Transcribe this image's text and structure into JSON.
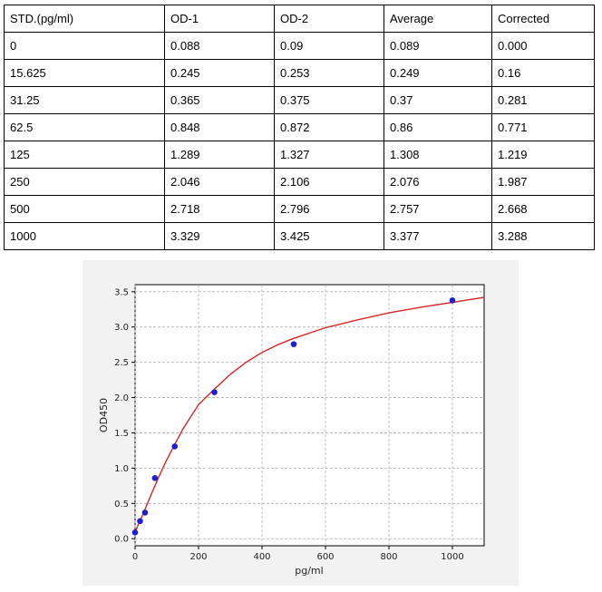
{
  "table": {
    "headers": [
      "STD.(pg/ml)",
      "OD-1",
      "OD-2",
      "Average",
      "Corrected"
    ],
    "rows": [
      [
        "0",
        "0.088",
        "0.09",
        "0.089",
        "0.000"
      ],
      [
        "15.625",
        "0.245",
        "0.253",
        "0.249",
        "0.16"
      ],
      [
        "31.25",
        "0.365",
        "0.375",
        "0.37",
        "0.281"
      ],
      [
        "62.5",
        "0.848",
        "0.872",
        "0.86",
        "0.771"
      ],
      [
        "125",
        "1.289",
        "1.327",
        "1.308",
        "1.219"
      ],
      [
        "250",
        "2.046",
        "2.106",
        "2.076",
        "1.987"
      ],
      [
        "500",
        "2.718",
        "2.796",
        "2.757",
        "2.668"
      ],
      [
        "1000",
        "3.329",
        "3.425",
        "3.377",
        "3.288"
      ]
    ]
  },
  "chart_data": {
    "type": "scatter",
    "xlabel": "pg/ml",
    "ylabel": "OD450",
    "xlim": [
      0,
      1100
    ],
    "ylim": [
      -0.1,
      3.6
    ],
    "xticks": [
      0,
      200,
      400,
      600,
      800,
      1000
    ],
    "yticks": [
      0.0,
      0.5,
      1.0,
      1.5,
      2.0,
      2.5,
      3.0,
      3.5
    ],
    "xtick_labels": [
      "0",
      "200",
      "400",
      "600",
      "800",
      "1000"
    ],
    "ytick_labels": [
      "0.0",
      "0.5",
      "1.0",
      "1.5",
      "2.0",
      "2.5",
      "3.0",
      "3.5"
    ],
    "grid": true,
    "points": {
      "x": [
        0,
        15.625,
        31.25,
        62.5,
        125,
        250,
        500,
        1000
      ],
      "y": [
        0.089,
        0.249,
        0.37,
        0.86,
        1.308,
        2.076,
        2.757,
        3.377
      ],
      "color": "#1f1fd0"
    },
    "fit_curve": {
      "x": [
        0,
        10,
        25,
        50,
        75,
        100,
        150,
        200,
        250,
        300,
        350,
        400,
        450,
        500,
        600,
        700,
        800,
        900,
        1000,
        1100
      ],
      "y": [
        0.09,
        0.2,
        0.35,
        0.62,
        0.88,
        1.12,
        1.55,
        1.9,
        2.12,
        2.33,
        2.5,
        2.64,
        2.75,
        2.84,
        2.99,
        3.1,
        3.2,
        3.28,
        3.35,
        3.42
      ],
      "color": "#d62728"
    }
  }
}
